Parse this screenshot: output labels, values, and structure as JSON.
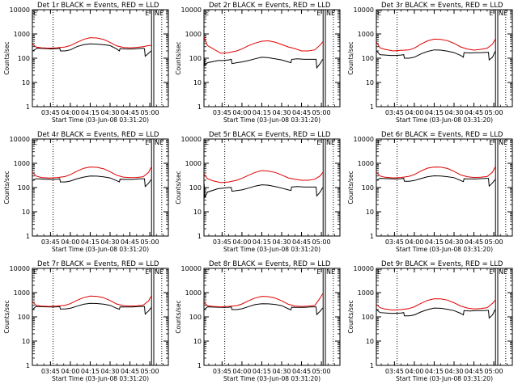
{
  "figure": {
    "ylabel": "Counts/sec",
    "xlabel": "Start Time (03-Jun-08 03:31:20)",
    "y_scale": "log",
    "ylim": [
      1,
      10000
    ],
    "y_ticks": [
      1,
      10,
      100,
      1000,
      10000
    ],
    "y_tick_labels": [
      "1",
      "10",
      "100",
      "1000",
      "10000"
    ],
    "x_tick_labels": [
      "03:45",
      "04:00",
      "04:15",
      "04:30",
      "04:45",
      "05:00"
    ],
    "x_tick_minutes": [
      225,
      240,
      255,
      270,
      285,
      300
    ],
    "x_range_minutes": [
      211.33,
      314
    ],
    "vlines_dotted_minutes": [
      227,
      309
    ],
    "vlines_solid_minutes": [
      301.3,
      303
    ],
    "corner_marks": [
      "E",
      "E",
      "NE"
    ],
    "colors": {
      "events": "#000000",
      "lld": "#e00000"
    }
  },
  "chart_data": [
    {
      "type": "line",
      "title": "Det 1r BLACK = Events, RED = LLD",
      "series": [
        {
          "name": "Events",
          "color": "#000000",
          "x": [
            211.5,
            215,
            222,
            226,
            230,
            232,
            232.5,
            236,
            240,
            245,
            250,
            255,
            260,
            265,
            270,
            275,
            277,
            277.5,
            282,
            287,
            291,
            295,
            296,
            296.5,
            299,
            301
          ],
          "values": [
            200,
            260,
            250,
            240,
            250,
            260,
            200,
            200,
            220,
            300,
            360,
            390,
            380,
            360,
            330,
            240,
            200,
            250,
            240,
            240,
            250,
            260,
            250,
            120,
            160,
            200
          ]
        },
        {
          "name": "LLD",
          "color": "#e00000",
          "x": [
            211.5,
            214,
            218,
            224,
            230,
            236,
            240,
            245,
            250,
            255,
            260,
            265,
            270,
            275,
            280,
            285,
            290,
            295,
            299,
            301
          ],
          "values": [
            380,
            290,
            270,
            260,
            270,
            290,
            330,
            450,
            600,
            700,
            680,
            600,
            450,
            320,
            280,
            270,
            280,
            300,
            330,
            330
          ]
        }
      ]
    },
    {
      "type": "line",
      "title": "Det 2r BLACK = Events, RED = LLD",
      "series": [
        {
          "name": "Events",
          "color": "#000000",
          "x": [
            211.5,
            212,
            214,
            222,
            226,
            230,
            232,
            232.5,
            236,
            240,
            245,
            250,
            255,
            260,
            265,
            270,
            275,
            277,
            277.5,
            282,
            287,
            291,
            295,
            296,
            296.5,
            299,
            301
          ],
          "values": [
            100,
            50,
            65,
            80,
            80,
            85,
            90,
            60,
            65,
            70,
            80,
            95,
            110,
            105,
            95,
            85,
            70,
            65,
            90,
            95,
            90,
            90,
            90,
            90,
            40,
            60,
            90
          ]
        },
        {
          "name": "LLD",
          "color": "#e00000",
          "x": [
            211.5,
            214,
            218,
            224,
            230,
            236,
            240,
            245,
            250,
            255,
            260,
            265,
            270,
            275,
            280,
            285,
            290,
            295,
            299,
            301
          ],
          "values": [
            700,
            330,
            250,
            160,
            170,
            200,
            240,
            330,
            420,
            500,
            520,
            460,
            370,
            290,
            250,
            200,
            200,
            220,
            350,
            470
          ]
        }
      ]
    },
    {
      "type": "line",
      "title": "Det 3r BLACK = Events, RED = LLD",
      "series": [
        {
          "name": "Events",
          "color": "#000000",
          "x": [
            211.5,
            214,
            222,
            226,
            230,
            232,
            232.5,
            236,
            240,
            245,
            250,
            255,
            260,
            265,
            270,
            275,
            277,
            277.5,
            282,
            287,
            291,
            295,
            296,
            296.5,
            299,
            301
          ],
          "values": [
            200,
            140,
            130,
            130,
            135,
            140,
            100,
            100,
            110,
            150,
            190,
            220,
            215,
            195,
            170,
            130,
            110,
            170,
            165,
            170,
            170,
            175,
            175,
            85,
            110,
            190
          ]
        },
        {
          "name": "LLD",
          "color": "#e00000",
          "x": [
            211.5,
            214,
            218,
            224,
            230,
            236,
            240,
            245,
            250,
            255,
            260,
            265,
            270,
            275,
            280,
            285,
            290,
            295,
            299,
            301
          ],
          "values": [
            450,
            270,
            230,
            200,
            210,
            220,
            260,
            380,
            520,
            610,
            600,
            530,
            410,
            290,
            240,
            215,
            230,
            260,
            380,
            600
          ]
        }
      ]
    },
    {
      "type": "line",
      "title": "Det 4r BLACK = Events, RED = LLD",
      "series": [
        {
          "name": "Events",
          "color": "#000000",
          "x": [
            211.5,
            214,
            222,
            226,
            230,
            232,
            232.5,
            236,
            240,
            245,
            250,
            255,
            260,
            265,
            270,
            275,
            277,
            277.5,
            282,
            287,
            291,
            295,
            296,
            296.5,
            299,
            301
          ],
          "values": [
            200,
            230,
            220,
            215,
            220,
            230,
            170,
            170,
            185,
            230,
            270,
            300,
            295,
            275,
            250,
            190,
            170,
            220,
            215,
            215,
            225,
            230,
            230,
            110,
            150,
            210
          ]
        },
        {
          "name": "LLD",
          "color": "#e00000",
          "x": [
            211.5,
            214,
            218,
            224,
            230,
            236,
            240,
            245,
            250,
            255,
            260,
            265,
            270,
            275,
            280,
            285,
            290,
            295,
            299,
            301
          ],
          "values": [
            420,
            300,
            260,
            245,
            255,
            285,
            340,
            470,
            620,
            700,
            680,
            600,
            450,
            320,
            270,
            255,
            260,
            280,
            420,
            680
          ]
        }
      ]
    },
    {
      "type": "line",
      "title": "Det 5r BLACK = Events, RED = LLD",
      "series": [
        {
          "name": "Events",
          "color": "#000000",
          "x": [
            211.5,
            212,
            214,
            222,
            226,
            230,
            232,
            232.5,
            236,
            240,
            245,
            250,
            255,
            260,
            265,
            270,
            275,
            277,
            277.5,
            282,
            287,
            291,
            295,
            296,
            296.5,
            299,
            301
          ],
          "values": [
            140,
            40,
            65,
            90,
            95,
            100,
            100,
            70,
            75,
            80,
            95,
            115,
            130,
            125,
            110,
            95,
            80,
            75,
            105,
            110,
            105,
            105,
            105,
            105,
            45,
            65,
            100
          ]
        },
        {
          "name": "LLD",
          "color": "#e00000",
          "x": [
            211.5,
            214,
            218,
            224,
            230,
            236,
            240,
            245,
            250,
            255,
            260,
            265,
            270,
            275,
            280,
            285,
            290,
            295,
            299,
            301
          ],
          "values": [
            350,
            230,
            190,
            160,
            170,
            200,
            240,
            320,
            420,
            500,
            480,
            420,
            330,
            250,
            220,
            200,
            200,
            220,
            300,
            420
          ]
        }
      ]
    },
    {
      "type": "line",
      "title": "Det 6r BLACK = Events, RED = LLD",
      "series": [
        {
          "name": "Events",
          "color": "#000000",
          "x": [
            211.5,
            214,
            222,
            226,
            230,
            232,
            232.5,
            236,
            240,
            245,
            250,
            255,
            260,
            265,
            270,
            275,
            277,
            277.5,
            282,
            287,
            291,
            295,
            296,
            296.5,
            299,
            301
          ],
          "values": [
            200,
            240,
            230,
            225,
            230,
            240,
            180,
            180,
            195,
            235,
            280,
            305,
            300,
            280,
            255,
            195,
            175,
            230,
            225,
            225,
            235,
            240,
            240,
            115,
            155,
            215
          ]
        },
        {
          "name": "LLD",
          "color": "#e00000",
          "x": [
            211.5,
            214,
            218,
            224,
            230,
            236,
            240,
            245,
            250,
            255,
            260,
            265,
            270,
            275,
            280,
            285,
            290,
            295,
            299,
            301
          ],
          "values": [
            420,
            300,
            265,
            250,
            260,
            290,
            345,
            480,
            630,
            700,
            690,
            610,
            460,
            330,
            280,
            260,
            265,
            285,
            430,
            700
          ]
        }
      ]
    },
    {
      "type": "line",
      "title": "Det 7r BLACK = Events, RED = LLD",
      "series": [
        {
          "name": "Events",
          "color": "#000000",
          "x": [
            211.5,
            214,
            222,
            226,
            230,
            232,
            232.5,
            236,
            240,
            245,
            250,
            255,
            260,
            265,
            270,
            275,
            277,
            277.5,
            282,
            287,
            291,
            295,
            296,
            296.5,
            299,
            301
          ],
          "values": [
            200,
            270,
            260,
            255,
            260,
            270,
            210,
            210,
            225,
            275,
            330,
            360,
            355,
            335,
            300,
            225,
            205,
            260,
            255,
            255,
            265,
            270,
            270,
            130,
            175,
            240
          ]
        },
        {
          "name": "LLD",
          "color": "#e00000",
          "x": [
            211.5,
            214,
            218,
            224,
            230,
            236,
            240,
            245,
            250,
            255,
            260,
            265,
            270,
            275,
            280,
            285,
            290,
            295,
            299,
            301
          ],
          "values": [
            420,
            300,
            280,
            270,
            280,
            300,
            350,
            480,
            620,
            720,
            700,
            620,
            470,
            340,
            290,
            280,
            285,
            305,
            450,
            700
          ]
        }
      ]
    },
    {
      "type": "line",
      "title": "Det 8r BLACK = Events, RED = LLD",
      "series": [
        {
          "name": "Events",
          "color": "#000000",
          "x": [
            211.5,
            214,
            222,
            226,
            230,
            232,
            232.5,
            236,
            240,
            245,
            250,
            255,
            260,
            265,
            270,
            275,
            277,
            277.5,
            282,
            287,
            291,
            295,
            296,
            296.5,
            299,
            301
          ],
          "values": [
            200,
            260,
            250,
            245,
            250,
            260,
            200,
            200,
            215,
            265,
            320,
            350,
            345,
            325,
            290,
            215,
            195,
            250,
            245,
            245,
            255,
            260,
            260,
            125,
            170,
            235
          ]
        },
        {
          "name": "LLD",
          "color": "#e00000",
          "x": [
            211.5,
            214,
            218,
            224,
            230,
            236,
            240,
            245,
            250,
            255,
            260,
            265,
            270,
            275,
            280,
            285,
            290,
            295,
            299,
            301
          ],
          "values": [
            380,
            290,
            270,
            260,
            270,
            290,
            340,
            460,
            600,
            700,
            680,
            600,
            460,
            330,
            280,
            270,
            275,
            295,
            600,
            900
          ]
        }
      ]
    },
    {
      "type": "line",
      "title": "Det 9r BLACK = Events, RED = LLD",
      "series": [
        {
          "name": "Events",
          "color": "#000000",
          "x": [
            211.5,
            214,
            222,
            226,
            230,
            232,
            232.5,
            236,
            240,
            245,
            250,
            255,
            260,
            265,
            270,
            275,
            277,
            277.5,
            282,
            287,
            291,
            295,
            296,
            296.5,
            299,
            301
          ],
          "values": [
            200,
            150,
            140,
            140,
            145,
            150,
            110,
            110,
            120,
            160,
            200,
            230,
            225,
            205,
            180,
            140,
            120,
            180,
            175,
            180,
            180,
            185,
            185,
            90,
            120,
            200
          ]
        },
        {
          "name": "LLD",
          "color": "#e00000",
          "x": [
            211.5,
            214,
            218,
            224,
            230,
            236,
            240,
            245,
            250,
            255,
            260,
            265,
            270,
            275,
            280,
            285,
            290,
            295,
            299,
            301
          ],
          "values": [
            320,
            240,
            210,
            190,
            200,
            220,
            260,
            360,
            480,
            560,
            550,
            490,
            380,
            280,
            230,
            210,
            220,
            240,
            360,
            480
          ]
        }
      ]
    }
  ]
}
